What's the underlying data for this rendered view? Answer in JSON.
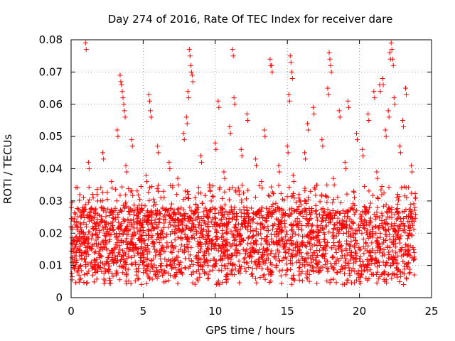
{
  "chart_data": {
    "type": "scatter",
    "title": "Day 274 of 2016, Rate Of TEC Index for receiver dare",
    "xlabel": "GPS time / hours",
    "ylabel": "ROTI / TECUs",
    "xlim": [
      0,
      25
    ],
    "ylim": [
      0,
      0.08
    ],
    "x_ticks": [
      0,
      5,
      10,
      15,
      20,
      25
    ],
    "x_tick_labels": [
      "0",
      "5",
      "10",
      "15",
      "20",
      "25"
    ],
    "y_ticks": [
      0,
      0.01,
      0.02,
      0.03,
      0.04,
      0.05,
      0.06,
      0.07,
      0.08
    ],
    "y_tick_labels": [
      "0",
      "0.01",
      "0.02",
      "0.03",
      "0.04",
      "0.05",
      "0.06",
      "0.07",
      "0.08"
    ],
    "grid": true,
    "marker": "+",
    "color": "#ff0000",
    "series": [
      {
        "name": "ROTI",
        "points": [
          [
            0.1,
            0.012
          ],
          [
            0.3,
            0.016
          ],
          [
            0.5,
            0.009
          ],
          [
            0.7,
            0.021
          ],
          [
            0.9,
            0.014
          ],
          [
            1.0,
            0.079
          ],
          [
            1.1,
            0.018
          ],
          [
            1.2,
            0.042
          ],
          [
            1.4,
            0.011
          ],
          [
            1.6,
            0.025
          ],
          [
            1.8,
            0.032
          ],
          [
            2.0,
            0.013
          ],
          [
            2.2,
            0.045
          ],
          [
            2.4,
            0.019
          ],
          [
            2.6,
            0.008
          ],
          [
            2.8,
            0.036
          ],
          [
            3.0,
            0.015
          ],
          [
            3.2,
            0.052
          ],
          [
            3.4,
            0.069
          ],
          [
            3.5,
            0.066
          ],
          [
            3.6,
            0.062
          ],
          [
            3.7,
            0.058
          ],
          [
            3.8,
            0.041
          ],
          [
            4.0,
            0.017
          ],
          [
            4.2,
            0.049
          ],
          [
            4.4,
            0.013
          ],
          [
            4.6,
            0.028
          ],
          [
            4.8,
            0.021
          ],
          [
            5.0,
            0.011
          ],
          [
            5.2,
            0.038
          ],
          [
            5.4,
            0.063
          ],
          [
            5.5,
            0.058
          ],
          [
            5.6,
            0.024
          ],
          [
            5.8,
            0.015
          ],
          [
            6.0,
            0.047
          ],
          [
            6.2,
            0.012
          ],
          [
            6.4,
            0.033
          ],
          [
            6.6,
            0.019
          ],
          [
            6.8,
            0.042
          ],
          [
            7.0,
            0.014
          ],
          [
            7.2,
            0.026
          ],
          [
            7.4,
            0.037
          ],
          [
            7.6,
            0.011
          ],
          [
            7.8,
            0.051
          ],
          [
            8.0,
            0.056
          ],
          [
            8.1,
            0.064
          ],
          [
            8.2,
            0.077
          ],
          [
            8.3,
            0.072
          ],
          [
            8.4,
            0.069
          ],
          [
            8.6,
            0.031
          ],
          [
            8.8,
            0.016
          ],
          [
            9.0,
            0.044
          ],
          [
            9.2,
            0.013
          ],
          [
            9.4,
            0.027
          ],
          [
            9.6,
            0.035
          ],
          [
            9.8,
            0.018
          ],
          [
            10.0,
            0.048
          ],
          [
            10.2,
            0.061
          ],
          [
            10.4,
            0.012
          ],
          [
            10.6,
            0.039
          ],
          [
            10.8,
            0.022
          ],
          [
            11.0,
            0.053
          ],
          [
            11.2,
            0.077
          ],
          [
            11.3,
            0.062
          ],
          [
            11.4,
            0.015
          ],
          [
            11.6,
            0.034
          ],
          [
            11.8,
            0.046
          ],
          [
            12.0,
            0.011
          ],
          [
            12.2,
            0.057
          ],
          [
            12.4,
            0.024
          ],
          [
            12.6,
            0.019
          ],
          [
            12.8,
            0.043
          ],
          [
            13.0,
            0.014
          ],
          [
            13.2,
            0.036
          ],
          [
            13.4,
            0.052
          ],
          [
            13.6,
            0.017
          ],
          [
            13.8,
            0.074
          ],
          [
            13.9,
            0.072
          ],
          [
            14.0,
            0.029
          ],
          [
            14.2,
            0.012
          ],
          [
            14.4,
            0.041
          ],
          [
            14.6,
            0.023
          ],
          [
            14.8,
            0.016
          ],
          [
            15.0,
            0.047
          ],
          [
            15.1,
            0.063
          ],
          [
            15.2,
            0.075
          ],
          [
            15.3,
            0.07
          ],
          [
            15.4,
            0.038
          ],
          [
            15.6,
            0.013
          ],
          [
            15.8,
            0.032
          ],
          [
            16.0,
            0.021
          ],
          [
            16.2,
            0.045
          ],
          [
            16.4,
            0.054
          ],
          [
            16.6,
            0.015
          ],
          [
            16.8,
            0.059
          ],
          [
            17.0,
            0.027
          ],
          [
            17.2,
            0.011
          ],
          [
            17.4,
            0.049
          ],
          [
            17.6,
            0.018
          ],
          [
            17.8,
            0.065
          ],
          [
            17.9,
            0.076
          ],
          [
            18.0,
            0.072
          ],
          [
            18.2,
            0.037
          ],
          [
            18.4,
            0.014
          ],
          [
            18.6,
            0.058
          ],
          [
            18.8,
            0.024
          ],
          [
            19.0,
            0.042
          ],
          [
            19.2,
            0.061
          ],
          [
            19.4,
            0.016
          ],
          [
            19.6,
            0.033
          ],
          [
            19.8,
            0.051
          ],
          [
            20.0,
            0.012
          ],
          [
            20.2,
            0.046
          ],
          [
            20.4,
            0.028
          ],
          [
            20.6,
            0.057
          ],
          [
            20.8,
            0.019
          ],
          [
            21.0,
            0.064
          ],
          [
            21.2,
            0.039
          ],
          [
            21.4,
            0.066
          ],
          [
            21.6,
            0.068
          ],
          [
            21.8,
            0.052
          ],
          [
            22.0,
            0.058
          ],
          [
            22.1,
            0.076
          ],
          [
            22.2,
            0.079
          ],
          [
            22.3,
            0.074
          ],
          [
            22.4,
            0.062
          ],
          [
            22.6,
            0.031
          ],
          [
            22.8,
            0.047
          ],
          [
            23.0,
            0.055
          ],
          [
            23.2,
            0.065
          ],
          [
            23.4,
            0.022
          ],
          [
            23.6,
            0.041
          ],
          [
            23.8,
            0.014
          ]
        ]
      }
    ],
    "dense_band": {
      "x_range": [
        0,
        23.9
      ],
      "y_low": 0.004,
      "y_mid": 0.014,
      "y_high": 0.035
    }
  }
}
